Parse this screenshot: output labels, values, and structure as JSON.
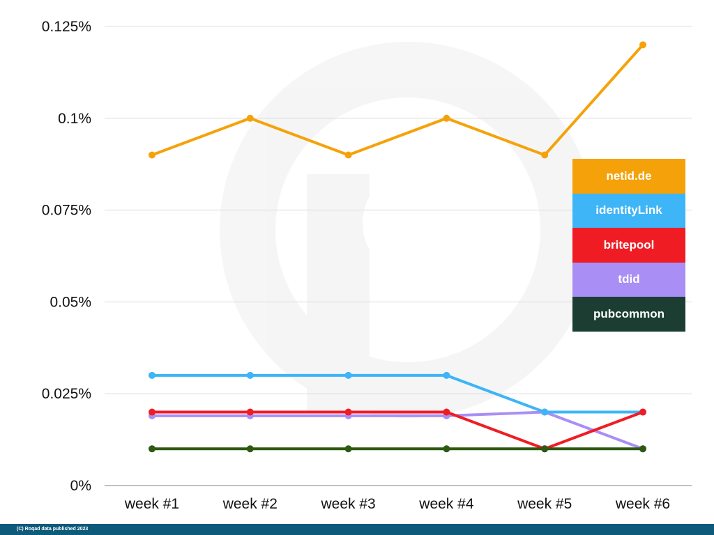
{
  "chart_data": {
    "type": "line",
    "title": "",
    "xlabel": "",
    "ylabel": "",
    "categories": [
      "week #1",
      "week #2",
      "week #3",
      "week #4",
      "week #5",
      "week #6"
    ],
    "y_ticks": [
      0,
      0.025,
      0.05,
      0.075,
      0.1,
      0.125
    ],
    "y_tick_labels": [
      "0%",
      "0.025%",
      "0.05%",
      "0.075%",
      "0.1%",
      "0.125%"
    ],
    "ylim": [
      0,
      0.125
    ],
    "grid": true,
    "legend_position": "right",
    "series": [
      {
        "name": "netid.de",
        "color": "#f5a20a",
        "values": [
          0.09,
          0.1,
          0.09,
          0.1,
          0.09,
          0.12
        ]
      },
      {
        "name": "identityLink",
        "color": "#3db5f7",
        "values": [
          0.03,
          0.03,
          0.03,
          0.03,
          0.02,
          0.02
        ]
      },
      {
        "name": "britepool",
        "color": "#f01c24",
        "values": [
          0.02,
          0.02,
          0.02,
          0.02,
          0.01,
          0.02
        ]
      },
      {
        "name": "tdid",
        "color": "#a98ef5",
        "values": [
          0.019,
          0.019,
          0.019,
          0.019,
          0.02,
          0.01
        ]
      },
      {
        "name": "pubcommon",
        "color": "#2d5a12",
        "values": [
          0.01,
          0.01,
          0.01,
          0.01,
          0.01,
          0.01
        ]
      }
    ],
    "legend": [
      {
        "label": "netid.de",
        "color": "#f5a20a"
      },
      {
        "label": "identityLink",
        "color": "#3db5f7"
      },
      {
        "label": "britepool",
        "color": "#f01c24"
      },
      {
        "label": "tdid",
        "color": "#a98ef5"
      },
      {
        "label": "pubcommon",
        "color": "#1b3d32"
      }
    ]
  },
  "footer": {
    "text": "(C) Roqad data published  2023",
    "color": "#0d5a7a"
  }
}
